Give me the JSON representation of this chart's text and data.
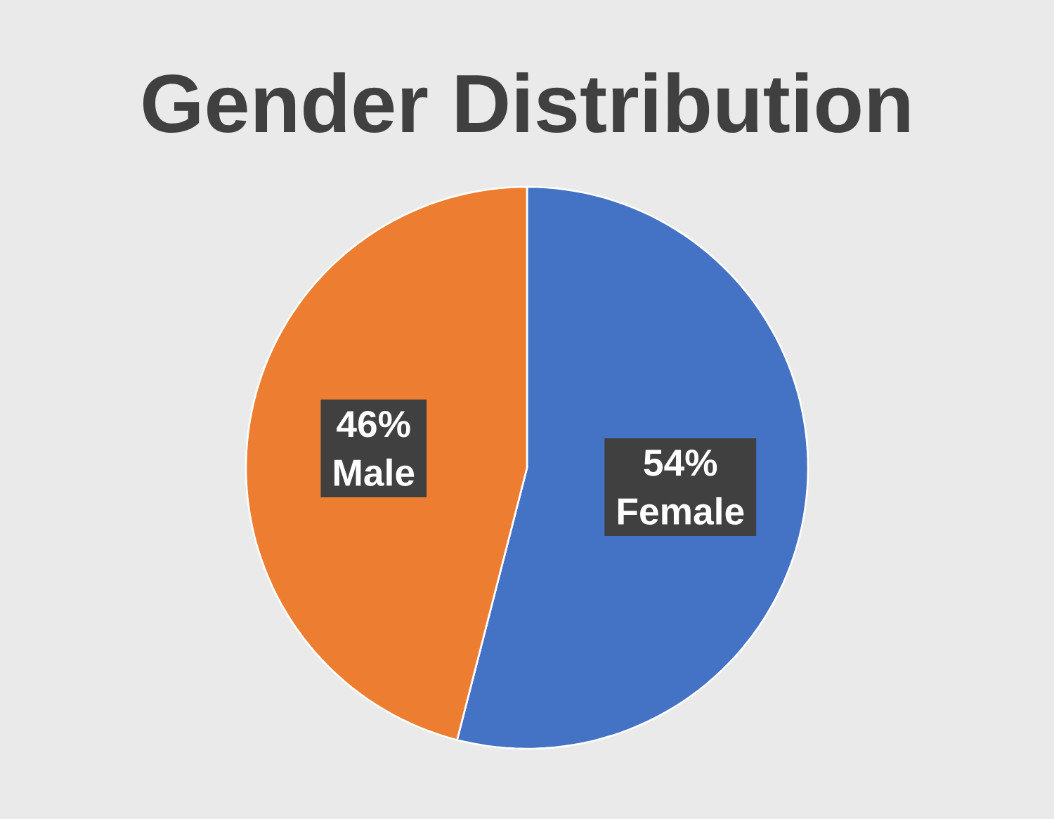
{
  "chart_data": {
    "type": "pie",
    "title": "Gender Distribution",
    "categories": [
      "Female",
      "Male"
    ],
    "values": [
      54,
      46
    ],
    "value_labels": [
      "54%",
      "46%"
    ],
    "colors": [
      "#4472c4",
      "#ed7d31"
    ]
  }
}
